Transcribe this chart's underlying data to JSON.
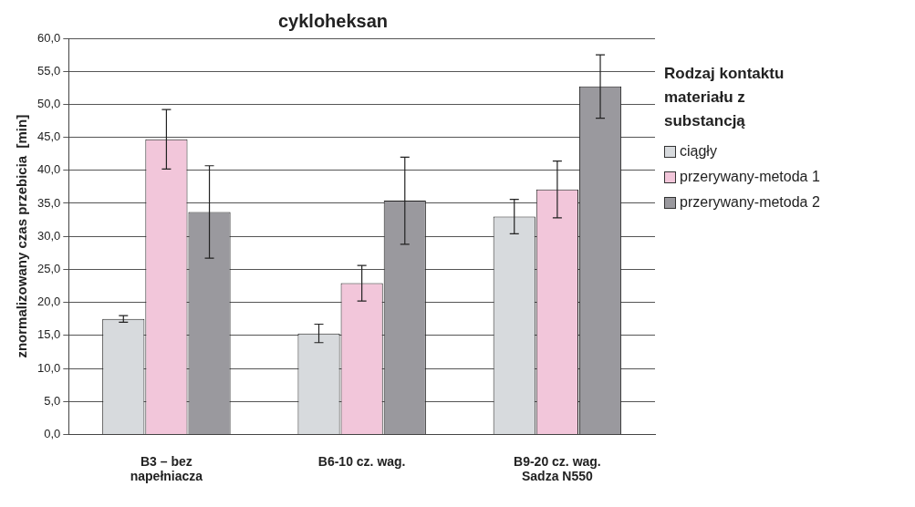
{
  "chart_data": {
    "type": "bar",
    "title": "cykloheksan",
    "ylabel": "znormalizowany czas przebicia  [min]",
    "legend_title": "Rodzaj kontaktu materiału z substancją",
    "categories": [
      "B3 – bez napełniacza",
      "B6-10 cz. wag.",
      "B9-20 cz. wag. Sadza N550"
    ],
    "series": [
      {
        "name": "ciągły",
        "color": "#d7dadd",
        "values": [
          17.5,
          15.3,
          33.0
        ],
        "errors": [
          0.5,
          1.4,
          2.6
        ]
      },
      {
        "name": "przerywany-metoda 1",
        "color": "#f2c6da",
        "values": [
          44.7,
          22.9,
          37.1
        ],
        "errors": [
          4.5,
          2.7,
          4.3
        ]
      },
      {
        "name": "przerywany-metoda 2",
        "color": "#9a999e",
        "values": [
          33.7,
          35.4,
          52.7
        ],
        "errors": [
          7.0,
          6.6,
          4.8
        ]
      }
    ],
    "ylim": [
      0,
      60
    ],
    "yticks": [
      {
        "value": 0,
        "label": "0,0"
      },
      {
        "value": 5,
        "label": "5,0"
      },
      {
        "value": 10,
        "label": "10,0"
      },
      {
        "value": 15,
        "label": "15,0"
      },
      {
        "value": 20,
        "label": "20,0"
      },
      {
        "value": 25,
        "label": "25,0"
      },
      {
        "value": 30,
        "label": "30,0"
      },
      {
        "value": 35,
        "label": "35,0"
      },
      {
        "value": 40,
        "label": "40,0"
      },
      {
        "value": 45,
        "label": "45,0"
      },
      {
        "value": 50,
        "label": "50,0"
      },
      {
        "value": 55,
        "label": "55,0"
      },
      {
        "value": 60,
        "label": "60,0"
      }
    ],
    "grid": "y",
    "legend": "right"
  }
}
